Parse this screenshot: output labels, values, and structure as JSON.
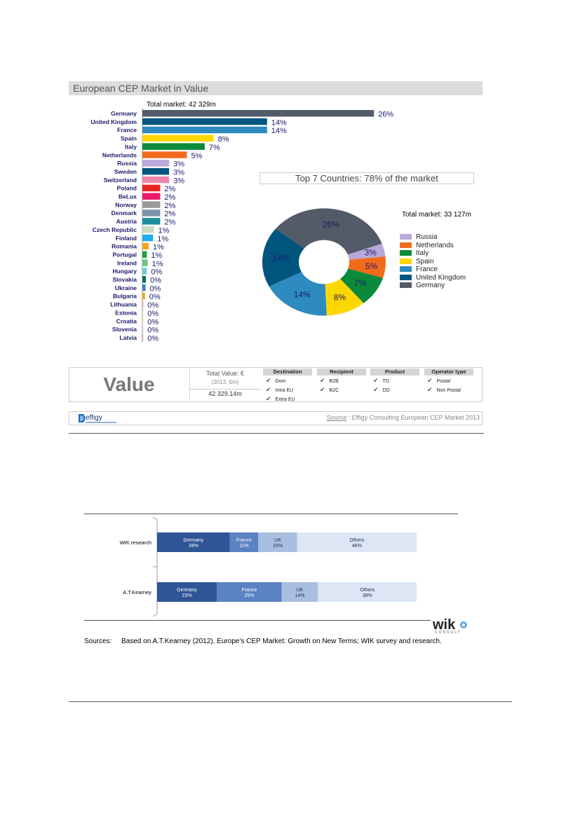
{
  "chart_data": [
    {
      "type": "bar",
      "orientation": "horizontal",
      "title": "European CEP Market in Value",
      "subtitle": "Total market: 42 329m",
      "categories": [
        "Germany",
        "United Kingdom",
        "France",
        "Spain",
        "Italy",
        "Netherlands",
        "Russia",
        "Sweden",
        "Switzerland",
        "Poland",
        "BeLux",
        "Norway",
        "Denmark",
        "Austria",
        "Czech Republic",
        "Finland",
        "Romania",
        "Portugal",
        "Ireland",
        "Hungary",
        "Slovakia",
        "Ukraine",
        "Bulgaria",
        "Lithuania",
        "Estonia",
        "Croatia",
        "Slovenia",
        "Latvia"
      ],
      "values": [
        26,
        14,
        14,
        8,
        7,
        5,
        3,
        3,
        3,
        2,
        2,
        2,
        2,
        2,
        1,
        1,
        1,
        1,
        1,
        0,
        0,
        0,
        0,
        0,
        0,
        0,
        0,
        0
      ],
      "value_labels": [
        "26%",
        "14%",
        "14%",
        "8%",
        "7%",
        "5%",
        "3%",
        "3%",
        "3%",
        "2%",
        "2%",
        "2%",
        "2%",
        "2%",
        "1%",
        "1%",
        "1%",
        "1%",
        "1%",
        "0%",
        "0%",
        "0%",
        "0%",
        "0%",
        "0%",
        "0%",
        "0%",
        "0%"
      ],
      "bar_lengths": [
        26,
        14,
        14,
        8,
        7,
        5,
        3,
        3,
        3,
        2,
        2,
        2,
        2,
        2,
        1.3,
        1.2,
        0.7,
        0.5,
        0.6,
        0.5,
        0.4,
        0.35,
        0.3,
        0.1,
        0.1,
        0.1,
        0.1,
        0.1
      ],
      "colors": [
        "#525b67",
        "#00557f",
        "#2e8bbf",
        "#ffd700",
        "#0a8a3a",
        "#f26b1d",
        "#b9a8d8",
        "#00557f",
        "#ec87ac",
        "#e8231f",
        "#ec1a6b",
        "#9a9a9a",
        "#7f95ac",
        "#1b8f9e",
        "#c8dbc0",
        "#1eaef0",
        "#f4a41f",
        "#1aa33c",
        "#6fc28a",
        "#6fd0dc",
        "#0a6b5b",
        "#3c7ad8",
        "#f4a41f",
        "#e8a1a1",
        "#c8e0c0",
        "#f4d0a0",
        "#d6c8e0",
        "#e8a1a1"
      ],
      "legend": "none"
    },
    {
      "type": "pie",
      "subtype": "donut",
      "title": "Top 7 Countries: 78% of the market",
      "subtitle": "Total market: 33 127m",
      "categories": [
        "Russia",
        "Netherlands",
        "Italy",
        "Spain",
        "France",
        "United Kingdom",
        "Germany"
      ],
      "values": [
        3,
        5,
        7,
        8,
        14,
        14,
        26
      ],
      "value_labels": [
        "3%",
        "5%",
        "7%",
        "8%",
        "14%",
        "14%",
        "26%"
      ],
      "colors": [
        "#b9a8d8",
        "#f26b1d",
        "#0a8a3a",
        "#ffd700",
        "#2e8bbf",
        "#00557f",
        "#525b67"
      ],
      "legend": "right"
    },
    {
      "type": "bar",
      "subtype": "stacked-horizontal-100",
      "categories": [
        "WIK research",
        "A.T.Kearney"
      ],
      "series": [
        {
          "name": "Germany",
          "values": [
            28,
            23
          ],
          "color": "#2f5597"
        },
        {
          "name": "France",
          "values": [
            11,
            25
          ],
          "color": "#5b82c3"
        },
        {
          "name": "UK",
          "values": [
            15,
            14
          ],
          "color": "#a9bfe0"
        },
        {
          "name": "Others",
          "values": [
            46,
            38
          ],
          "color": "#dce6f4"
        }
      ],
      "segment_labels": [
        [
          [
            "Germany",
            "28%"
          ],
          [
            "France",
            "11%"
          ],
          [
            "UK",
            "15%"
          ],
          [
            "Others",
            "46%"
          ]
        ],
        [
          [
            "Germany",
            "23%"
          ],
          [
            "France",
            "25%"
          ],
          [
            "UK",
            "14%"
          ],
          [
            "Others",
            "38%"
          ]
        ]
      ],
      "legend": "none"
    }
  ],
  "effigy_box": {
    "value_word": "Value",
    "total_label": "Total Value: €",
    "total_sub": "(2013, €m)",
    "total_value": "42 329.14m",
    "groups": [
      {
        "header": "Destination",
        "items": [
          "Dom",
          "Intra EU",
          "Extra EU"
        ]
      },
      {
        "header": "Recipient",
        "items": [
          "B2B",
          "B2C"
        ]
      },
      {
        "header": "Product",
        "items": [
          "TD",
          "DD"
        ]
      },
      {
        "header": "Operator type",
        "items": [
          "Postal",
          "Non Postal"
        ]
      }
    ],
    "check_glyph": "✔",
    "logo_text": "effigy",
    "source_link": "Source",
    "source_rest": " : Effigy Consulting European CEP Market 2013"
  },
  "wik": {
    "logo": "wik",
    "logo_sub": "CONSULT",
    "sources_label": "Sources:",
    "sources_text": "Based on A.T.Kearney (2012), Europe's CEP Market: Growth on New Terms; WIK survey and research."
  }
}
